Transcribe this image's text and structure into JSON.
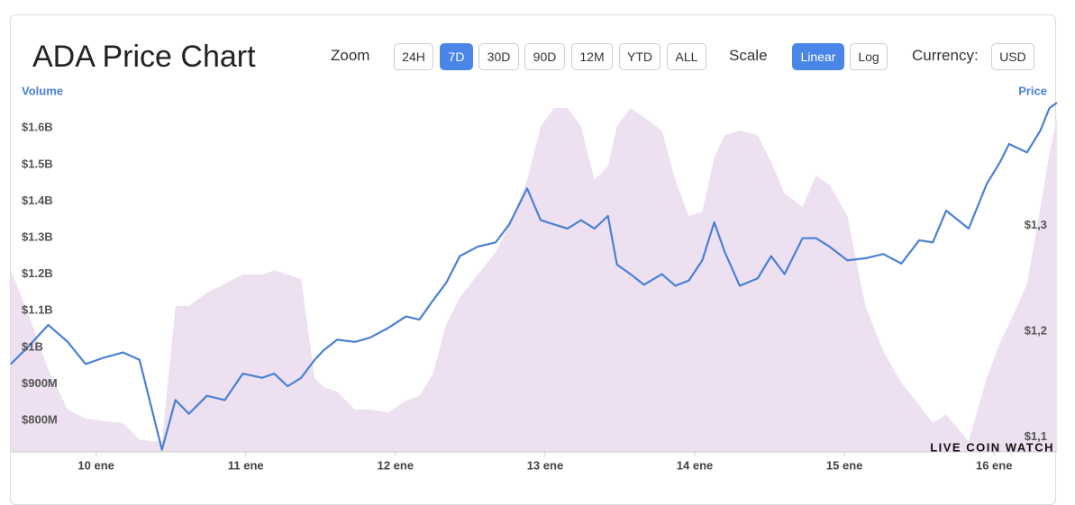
{
  "controls": {
    "zoom_label": "Zoom",
    "zoom_options": [
      {
        "label": "24H"
      },
      {
        "label": "7D",
        "selected": true
      },
      {
        "label": "30D"
      },
      {
        "label": "90D"
      },
      {
        "label": "12M"
      },
      {
        "label": "YTD"
      },
      {
        "label": "ALL"
      }
    ],
    "scale_label": "Scale",
    "scale_options": [
      {
        "label": "Linear",
        "selected": true
      },
      {
        "label": "Log"
      }
    ],
    "currency_label": "Currency:",
    "currency_options": [
      {
        "label": "USD"
      }
    ]
  },
  "chart_data": {
    "type": "line",
    "title": "ADA Price Chart",
    "watermark": "LIVE COIN WATCH",
    "x": [
      9.43,
      9.55,
      9.68,
      9.81,
      9.93,
      10.05,
      10.18,
      10.29,
      10.38,
      10.44,
      10.53,
      10.62,
      10.74,
      10.86,
      10.98,
      11.11,
      11.19,
      11.28,
      11.37,
      11.46,
      11.52,
      11.61,
      11.73,
      11.83,
      11.95,
      12.07,
      12.16,
      12.25,
      12.34,
      12.43,
      12.55,
      12.67,
      12.76,
      12.88,
      12.97,
      13.06,
      13.15,
      13.24,
      13.33,
      13.42,
      13.48,
      13.57,
      13.66,
      13.78,
      13.87,
      13.96,
      14.05,
      14.13,
      14.2,
      14.3,
      14.42,
      14.51,
      14.6,
      14.72,
      14.81,
      14.9,
      15.02,
      15.14,
      15.26,
      15.38,
      15.5,
      15.59,
      15.68,
      15.83,
      15.95,
      16.04,
      16.1,
      16.22,
      16.31,
      16.37,
      16.42
    ],
    "xlim": [
      9.43,
      16.42
    ],
    "xticks": [
      {
        "value": 10,
        "label": "10 ene"
      },
      {
        "value": 11,
        "label": "11 ene"
      },
      {
        "value": 12,
        "label": "12 ene"
      },
      {
        "value": 13,
        "label": "13 ene"
      },
      {
        "value": 14,
        "label": "14 ene"
      },
      {
        "value": 15,
        "label": "15 ene"
      },
      {
        "value": 16,
        "label": "16 ene"
      }
    ],
    "ylim": [
      714000000,
      1704000000
    ],
    "yticks": [
      {
        "value": 800000000,
        "label": "$800M"
      },
      {
        "value": 900000000,
        "label": "$900M"
      },
      {
        "value": 1000000000,
        "label": "$1B"
      },
      {
        "value": 1100000000,
        "label": "$1.1B"
      },
      {
        "value": 1200000000,
        "label": "$1.2B"
      },
      {
        "value": 1300000000,
        "label": "$1.3B"
      },
      {
        "value": 1400000000,
        "label": "$1.4B"
      },
      {
        "value": 1500000000,
        "label": "$1.5B"
      },
      {
        "value": 1600000000,
        "label": "$1.6B"
      }
    ],
    "y2lim": [
      1.086,
      1.428
    ],
    "y2ticks": [
      {
        "value": 1.1,
        "label": "$1,1"
      },
      {
        "value": 1.2,
        "label": "$1,2"
      },
      {
        "value": 1.3,
        "label": "$1,3"
      }
    ],
    "series": [
      {
        "name": "Volume",
        "type": "area",
        "color": "#ede1f1",
        "values": [
          1211000000,
          1088000000,
          940000000,
          830000000,
          805000000,
          798000000,
          793000000,
          748000000,
          743000000,
          743000000,
          1113000000,
          1113000000,
          1150000000,
          1174000000,
          1199000000,
          1199000000,
          1211000000,
          1199000000,
          1187000000,
          916000000,
          892000000,
          879000000,
          830000000,
          830000000,
          822000000,
          854000000,
          867000000,
          928000000,
          1064000000,
          1137000000,
          1199000000,
          1261000000,
          1334000000,
          1458000000,
          1605000000,
          1655000000,
          1655000000,
          1605000000,
          1458000000,
          1495000000,
          1605000000,
          1655000000,
          1630000000,
          1593000000,
          1458000000,
          1359000000,
          1371000000,
          1519000000,
          1581000000,
          1593000000,
          1581000000,
          1507000000,
          1421000000,
          1384000000,
          1470000000,
          1445000000,
          1359000000,
          1113000000,
          990000000,
          903000000,
          842000000,
          793000000,
          817000000,
          743000000,
          916000000,
          1014000000,
          1064000000,
          1174000000,
          1384000000,
          1532000000,
          1630000000
        ]
      },
      {
        "name": "Price",
        "type": "line",
        "axis": "y2",
        "color": "#4a80d4",
        "values": [
          1.169,
          1.186,
          1.206,
          1.19,
          1.169,
          1.175,
          1.18,
          1.173,
          1.122,
          1.088,
          1.135,
          1.122,
          1.139,
          1.135,
          1.16,
          1.156,
          1.16,
          1.148,
          1.156,
          1.173,
          1.182,
          1.192,
          1.19,
          1.194,
          1.203,
          1.214,
          1.211,
          1.229,
          1.246,
          1.271,
          1.28,
          1.284,
          1.301,
          1.335,
          1.305,
          1.301,
          1.297,
          1.305,
          1.297,
          1.309,
          1.263,
          1.254,
          1.244,
          1.254,
          1.243,
          1.248,
          1.267,
          1.303,
          1.275,
          1.243,
          1.25,
          1.271,
          1.254,
          1.288,
          1.288,
          1.28,
          1.267,
          1.269,
          1.273,
          1.264,
          1.286,
          1.284,
          1.314,
          1.297,
          1.339,
          1.36,
          1.377,
          1.369,
          1.39,
          1.411,
          1.416
        ]
      }
    ]
  }
}
